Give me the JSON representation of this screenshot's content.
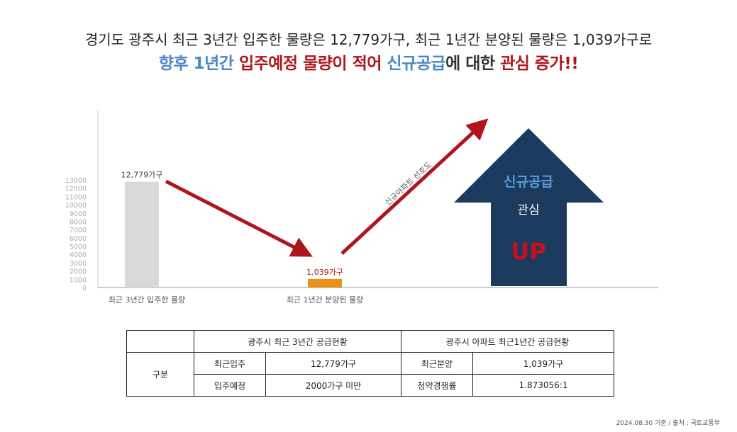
{
  "headline": {
    "line1": "경기도 광주시 최근 3년간 입주한 물량은 12,779가구, 최근 1년간 분양된 물량은 1,039가구로",
    "line2_parts": [
      {
        "text": "향후 1년간 ",
        "color": "blue"
      },
      {
        "text": "입주예정 물량이 적어 ",
        "color": "red"
      },
      {
        "text": "신규공급",
        "color": "blue"
      },
      {
        "text": "에 대한 ",
        "color": "dark"
      },
      {
        "text": "관심 증가!!",
        "color": "red"
      }
    ]
  },
  "chart_data": {
    "type": "bar",
    "categories": [
      "최근 3년간 입주한 물량",
      "최근 1년간 분양된 물량"
    ],
    "values": [
      12779,
      1039
    ],
    "data_labels": [
      "12,779가구",
      "1,039가구"
    ],
    "bar_colors": [
      "#d9d9d9",
      "#e8921a"
    ],
    "yticks": [
      "13000",
      "12000",
      "11000",
      "10000",
      "9000",
      "8000",
      "7000",
      "6000",
      "5000",
      "4000",
      "3000",
      "2000",
      "1000",
      "0"
    ],
    "ylim": [
      0,
      13000
    ],
    "arrow_label": "신규아파트 선호도",
    "arrow_color": "#b0151b",
    "big_arrow": {
      "line1": "신규공급",
      "line2": "관심",
      "line3": "UP",
      "fill": "#1c3a5e",
      "line1_color": "#5b9bd5",
      "line3_color": "#c8101a"
    }
  },
  "table": {
    "col_group1": "광주시 최근 3년간 공급현황",
    "col_group2": "광주시 아파트 최근1년간 공급현황",
    "row_header": "구분",
    "rows": [
      [
        "최근입주",
        "12,779가구",
        "최근분양",
        "1,039가구"
      ],
      [
        "입주예정",
        "2000가구 미만",
        "청약경쟁률",
        "1.873056:1"
      ]
    ]
  },
  "footer": "2024.08.30 기준 / 출처 : 국토교통부"
}
